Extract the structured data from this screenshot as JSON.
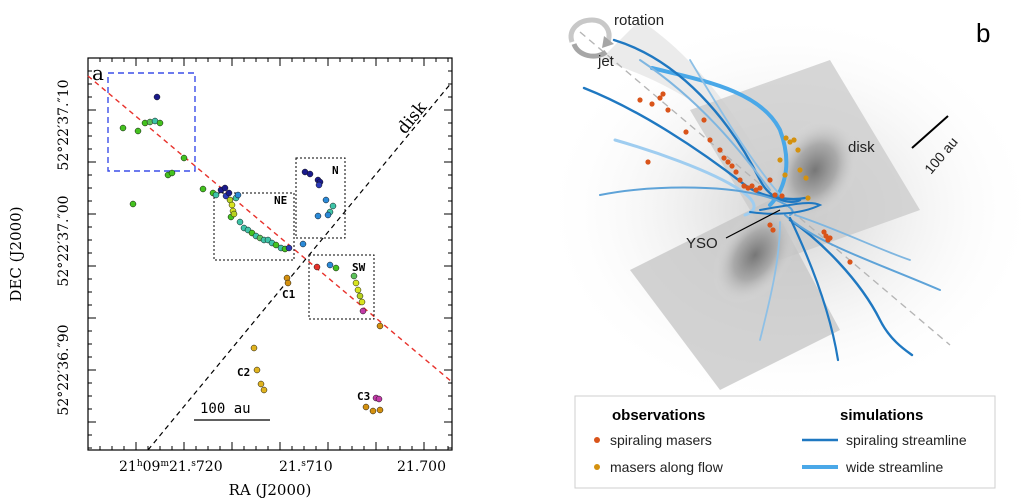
{
  "panel_a": {
    "label": "a",
    "xlabel": "RA (J2000)",
    "ylabel": "DEC (J2000)",
    "x_ticks": [
      {
        "label": "21h09m21.s720",
        "parts": [
          "21",
          "h",
          "09",
          "m",
          "21.",
          "s",
          "720"
        ]
      },
      {
        "label": "21.s710",
        "parts": [
          "21.",
          "s",
          "710"
        ]
      },
      {
        "label": "21.700",
        "parts": [
          "21.700"
        ]
      }
    ],
    "y_ticks": [
      "52°22′37.″10",
      "52°22′37.″00",
      "52°22′36.″90"
    ],
    "disk_label": "disk",
    "region_labels": [
      "NE",
      "N",
      "SW",
      "C1",
      "C2",
      "C3"
    ],
    "scalebar_label": "100 au"
  },
  "panel_b": {
    "label": "b",
    "labels": {
      "rotation": "rotation",
      "jet": "jet",
      "disk": "disk",
      "yso": "YSO",
      "scale": "100 au"
    },
    "legend": {
      "observations_title": "observations",
      "simulations_title": "simulations",
      "items": [
        {
          "label": "spiraling masers",
          "color": "#d9541a"
        },
        {
          "label": "masers along flow",
          "color": "#d4910f"
        },
        {
          "label": "spiraling streamline",
          "color": "#1f78c1"
        },
        {
          "label": "wide streamline",
          "color": "#4aa8e8"
        }
      ]
    }
  }
}
